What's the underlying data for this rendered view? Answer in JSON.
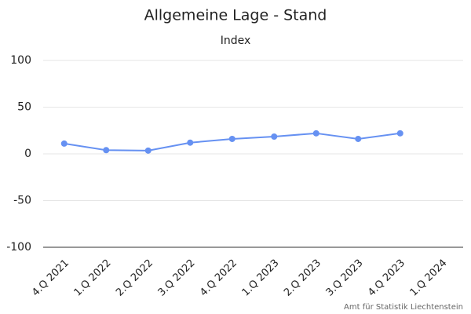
{
  "chart_data": {
    "type": "line",
    "title": "Allgemeine Lage - Stand",
    "subtitle": "Index",
    "categories": [
      "4.Q 2021",
      "1.Q 2022",
      "2.Q 2022",
      "3.Q 2022",
      "4.Q 2022",
      "1.Q 2023",
      "2.Q 2023",
      "3.Q 2023",
      "4.Q 2023",
      "1.Q 2024"
    ],
    "series": [
      {
        "name": "Index",
        "color": "#6691f2",
        "values": [
          11,
          4,
          3.5,
          12,
          16,
          18.5,
          22,
          16,
          22,
          null
        ]
      }
    ],
    "ylim": [
      -100,
      100
    ],
    "yticks": [
      -100,
      -50,
      0,
      50,
      100
    ],
    "grid": true,
    "credit": "Amt für Statistik Liechtenstein"
  }
}
